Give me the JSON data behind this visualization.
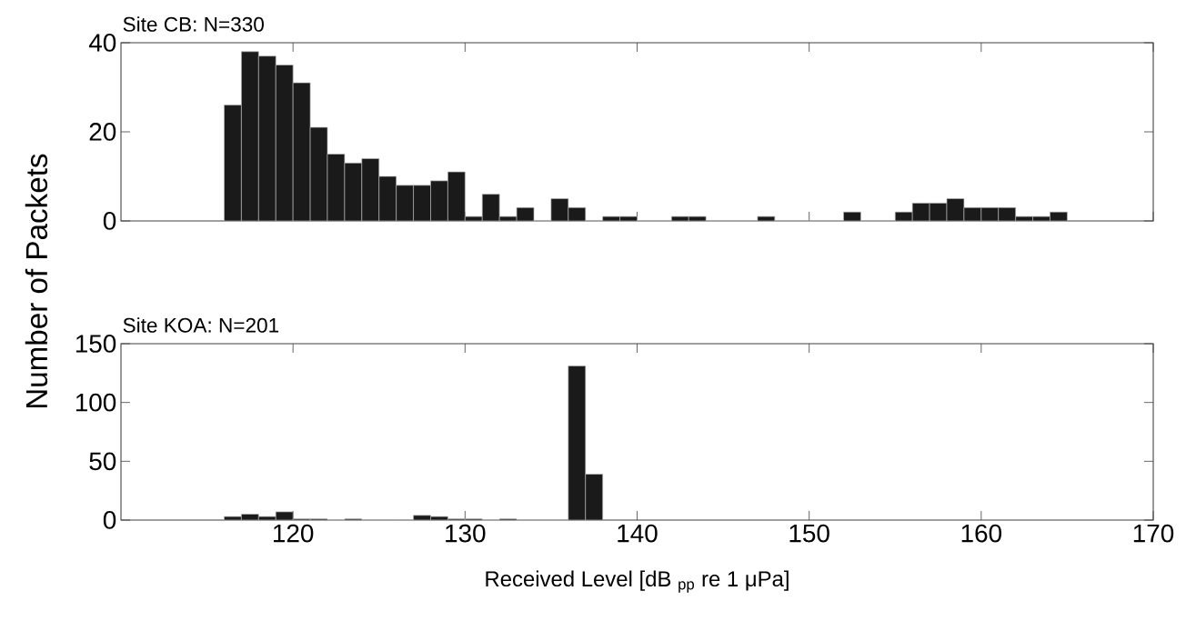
{
  "chart_data": [
    {
      "type": "histogram",
      "title": "Site CB: N=330",
      "ylabel": "Number of Packets",
      "color": "#1a1a1a",
      "bins": [
        116,
        117,
        118,
        119,
        120,
        121,
        122,
        123,
        124,
        125,
        126,
        127,
        128,
        129,
        130,
        131,
        132,
        133,
        134,
        135,
        136,
        137,
        138,
        139,
        140,
        141,
        142,
        143,
        144,
        145,
        146,
        147,
        148,
        149,
        150,
        151,
        152,
        153,
        154,
        155,
        156,
        157,
        158,
        159,
        160,
        161,
        162,
        163,
        164,
        165
      ],
      "values": [
        26,
        38,
        37,
        35,
        31,
        21,
        15,
        13,
        14,
        10,
        8,
        8,
        9,
        11,
        1,
        6,
        1,
        3,
        0,
        5,
        3,
        0,
        1,
        1,
        0,
        0,
        1,
        1,
        0,
        0,
        0,
        1,
        0,
        0,
        0,
        0,
        2,
        0,
        0,
        2,
        4,
        4,
        5,
        3,
        3,
        3,
        1,
        1,
        2
      ],
      "xlim": [
        110,
        170
      ],
      "ylim": [
        0,
        40
      ],
      "xticks": [
        120,
        130,
        140,
        150,
        160,
        170
      ],
      "yticks": [
        0,
        20,
        40
      ],
      "tick_labels": "y"
    },
    {
      "type": "histogram",
      "title": "Site KOA: N=201",
      "xlabel": "Received Level [dB $_{pp}$ re 1 μPa]",
      "color": "#1a1a1a",
      "bins": [
        116,
        117,
        118,
        119,
        120,
        121,
        122,
        123,
        124,
        125,
        126,
        127,
        128,
        129,
        130,
        131,
        132,
        133,
        134,
        135,
        136,
        137,
        138
      ],
      "values": [
        3,
        5,
        3,
        7,
        1,
        1,
        0,
        1,
        0,
        0,
        0,
        4,
        3,
        1,
        1,
        0,
        1,
        0,
        0,
        0,
        131,
        39
      ],
      "xlim": [
        110,
        170
      ],
      "ylim": [
        0,
        150
      ],
      "xticks": [
        120,
        130,
        140,
        150,
        160,
        170
      ],
      "yticks": [
        0,
        50,
        100,
        150
      ]
    }
  ]
}
